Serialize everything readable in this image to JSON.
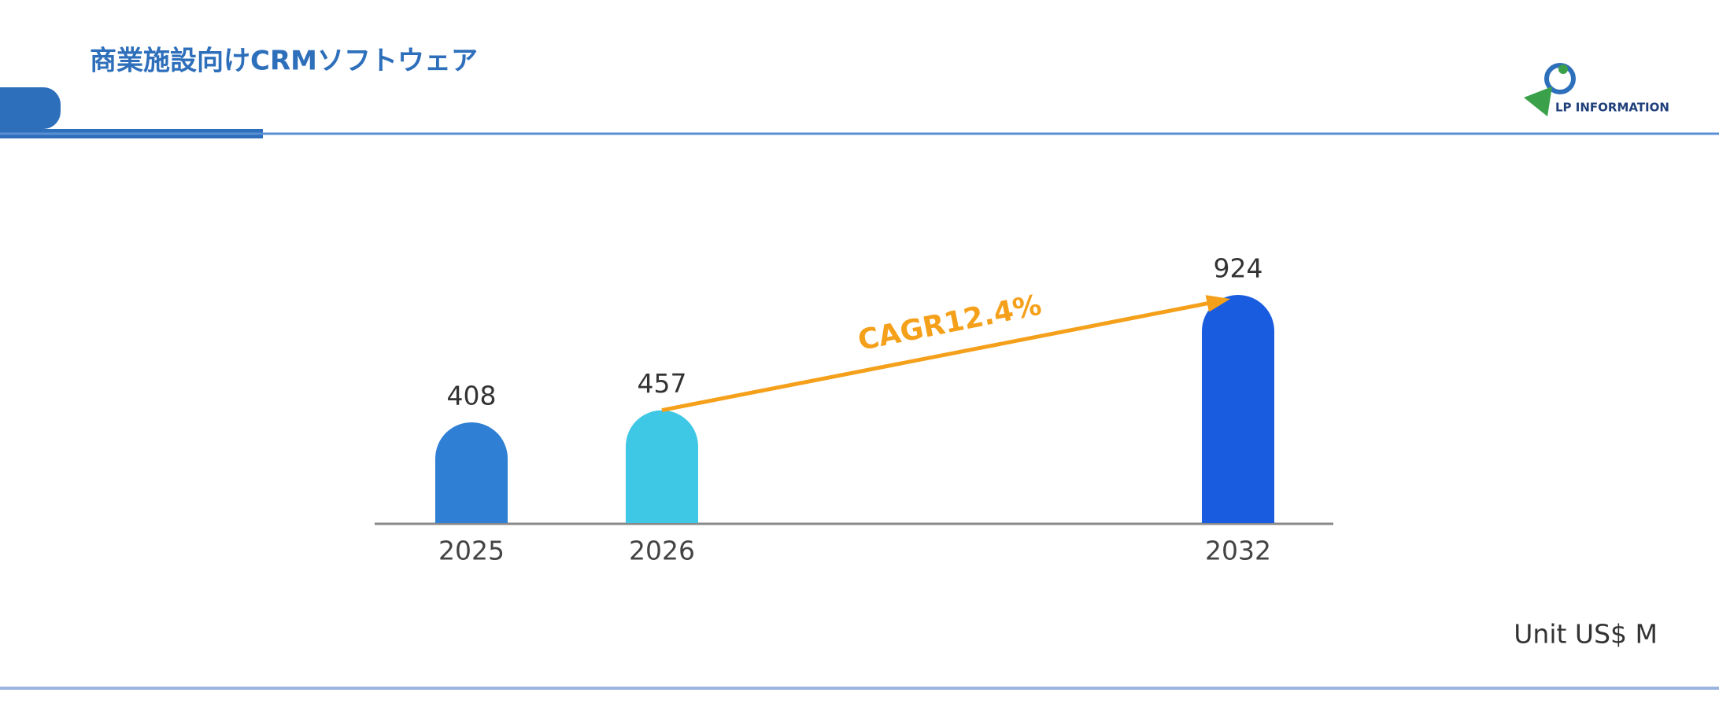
{
  "header": {
    "title": "商業施設向けCRMソフトウェア",
    "logo": "LP INFORMATION"
  },
  "chart_data": {
    "type": "bar",
    "categories": [
      "2025",
      "2026",
      "2032"
    ],
    "values": [
      408,
      457,
      924
    ],
    "colors": [
      "#2f7fd4",
      "#3ec8e6",
      "#1a5ce0"
    ],
    "annotation": "CAGR12.4%",
    "annotation_color": "#f5a01a",
    "unit": "Unit US$ M"
  }
}
